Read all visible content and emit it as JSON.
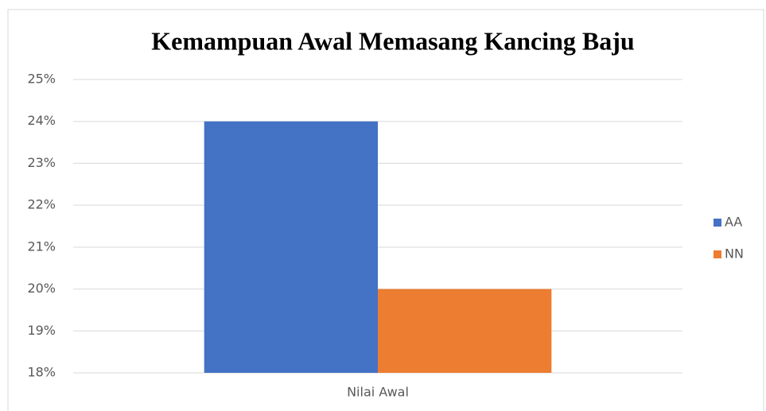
{
  "chart_data": {
    "type": "bar",
    "title": "Kemampuan Awal Memasang Kancing Baju",
    "categories": [
      "Nilai Awal"
    ],
    "series": [
      {
        "name": "AA",
        "color": "#4472c4",
        "values": [
          24
        ]
      },
      {
        "name": "NN",
        "color": "#ed7d31",
        "values": [
          20
        ]
      }
    ],
    "ylim": [
      18,
      25
    ],
    "yticks": [
      {
        "value": 18,
        "label": "18%"
      },
      {
        "value": 19,
        "label": "19%"
      },
      {
        "value": 20,
        "label": "20%"
      },
      {
        "value": 21,
        "label": "21%"
      },
      {
        "value": 22,
        "label": "22%"
      },
      {
        "value": 23,
        "label": "23%"
      },
      {
        "value": 24,
        "label": "24%"
      },
      {
        "value": 25,
        "label": "25%"
      }
    ],
    "grid": true,
    "legend": "right"
  }
}
